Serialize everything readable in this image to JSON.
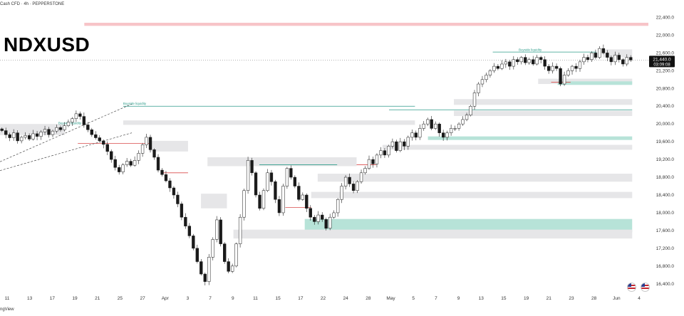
{
  "header": {
    "symbol_line": "Cash CFD · 4h · PEPPERSTONE"
  },
  "title": "NDXUSD",
  "footer": {
    "brand": "ngView"
  },
  "price_label": {
    "price": "21,440.0",
    "countdown": "03:09:08"
  },
  "icons": {
    "flag_icon_1": "us-flag-icon",
    "flag_icon_2": "us-flag-icon"
  },
  "colors": {
    "bull": "#1a1a1a",
    "bear": "#1a1a1a",
    "supply_zone": "#f7c4c8",
    "demand_zone": "#b7e3d8",
    "neutral_zone": "#e6e6e8",
    "liquidity_line": "#2e9c8a",
    "bos_line": "#d94a4a"
  },
  "chart_data": {
    "type": "candlestick",
    "title": "NDXUSD",
    "x_tick_labels": [
      "11",
      "13",
      "17",
      "19",
      "21",
      "25",
      "27",
      "Apr",
      "3",
      "7",
      "9",
      "11",
      "15",
      "17",
      "22",
      "24",
      "28",
      "May",
      "5",
      "7",
      "9",
      "13",
      "15",
      "19",
      "21",
      "23",
      "28",
      "Jun",
      "4"
    ],
    "y_tick_labels": [
      "22,400.0",
      "22,000.0",
      "21,600.0",
      "21,200.0",
      "20,800.0",
      "20,400.0",
      "20,000.0",
      "19,600.0",
      "19,200.0",
      "18,800.0",
      "18,400.0",
      "18,000.0",
      "17,600.0",
      "17,200.0",
      "16,800.0",
      "16,400.0"
    ],
    "ylim": [
      16300,
      22600
    ],
    "last_price": 21440.0,
    "annotations": [
      "Buyside liquidity",
      "Buyside liquidity",
      "Buyside liquidity"
    ],
    "closes": [
      19850,
      19760,
      19690,
      19800,
      19620,
      19700,
      19740,
      19660,
      19780,
      19720,
      19820,
      19880,
      19760,
      19840,
      19920,
      19870,
      19960,
      20040,
      20120,
      20230,
      20170,
      19980,
      19870,
      19760,
      19690,
      19620,
      19540,
      19380,
      19200,
      19020,
      18920,
      19080,
      19160,
      19070,
      19180,
      19340,
      19530,
      19700,
      19420,
      19250,
      18960,
      18860,
      18720,
      18560,
      18400,
      18200,
      17900,
      17700,
      17480,
      17200,
      16900,
      16620,
      16450,
      17000,
      17400,
      17840,
      17300,
      16900,
      16680,
      16800,
      17300,
      17900,
      18500,
      19180,
      18900,
      18400,
      18100,
      18500,
      18900,
      18700,
      18300,
      18000,
      18600,
      19000,
      18800,
      18600,
      18300,
      18400,
      18100,
      17900,
      17800,
      17950,
      17850,
      17650,
      17900,
      18000,
      18300,
      18600,
      18800,
      18650,
      18500,
      18700,
      18900,
      19000,
      19200,
      19100,
      19300,
      19400,
      19300,
      19500,
      19600,
      19400,
      19600,
      19500,
      19700,
      19800,
      19700,
      19900,
      20000,
      20100,
      19900,
      20000,
      19800,
      19700,
      19800,
      19900,
      19900,
      20000,
      20100,
      20200,
      20400,
      20700,
      20900,
      21000,
      21100,
      21200,
      21300,
      21250,
      21350,
      21400,
      21300,
      21450,
      21400,
      21500,
      21380,
      21450,
      21350,
      21500,
      21450,
      21300,
      21200,
      21300,
      21250,
      20900,
      21100,
      21200,
      21300,
      21250,
      21400,
      21500,
      21450,
      21600,
      21500,
      21700,
      21600,
      21500,
      21400,
      21550,
      21450,
      21350,
      21500,
      21440
    ]
  }
}
